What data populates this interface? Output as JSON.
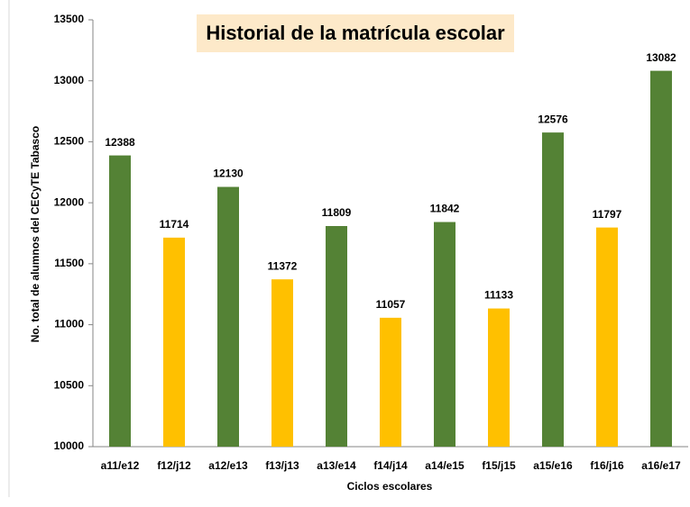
{
  "chart_data": {
    "type": "bar",
    "title": "Historial de la matrícula escolar",
    "x_label": "Ciclos escolares",
    "y_label": "No. total de alumnos del CECyTE Tabasco",
    "categories": [
      "a11/e12",
      "f12/j12",
      "a12/e13",
      "f13/j13",
      "a13/e14",
      "f14/j14",
      "a14/e15",
      "f15/j15",
      "a15/e16",
      "f16/j16",
      "a16/e17"
    ],
    "values": [
      12388,
      11714,
      12130,
      11372,
      11809,
      11057,
      11842,
      11133,
      12576,
      11797,
      13082
    ],
    "colors": [
      "#548235",
      "#ffc000",
      "#548235",
      "#ffc000",
      "#548235",
      "#ffc000",
      "#548235",
      "#ffc000",
      "#548235",
      "#ffc000",
      "#548235"
    ],
    "ylim": [
      10000,
      13500
    ],
    "yticks": [
      10000,
      10500,
      11000,
      11500,
      12000,
      12500,
      13000,
      13500
    ],
    "grid": false
  }
}
